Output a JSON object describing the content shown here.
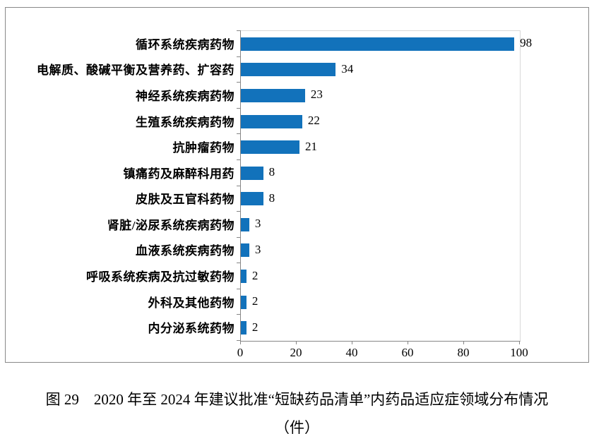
{
  "chart_data": {
    "type": "bar",
    "orientation": "horizontal",
    "categories": [
      "循环系统疾病药物",
      "电解质、酸碱平衡及营养药、扩容药",
      "神经系统疾病药物",
      "生殖系统疾病药物",
      "抗肿瘤药物",
      "镇痛药及麻醉科用药",
      "皮肤及五官科药物",
      "肾脏/泌尿系统疾病药物",
      "血液系统疾病药物",
      "呼吸系统疾病及抗过敏药物",
      "外科及其他药物",
      "内分泌系统药物"
    ],
    "values": [
      98,
      34,
      23,
      22,
      21,
      8,
      8,
      3,
      3,
      2,
      2,
      2
    ],
    "value_labels": [
      "98",
      "34",
      "23",
      "22",
      "21",
      "8",
      "8",
      "3",
      "3",
      "2",
      "2",
      "2"
    ],
    "xlim": [
      0,
      100
    ],
    "x_ticks": [
      "0",
      "20",
      "40",
      "60",
      "80",
      "100"
    ],
    "x_tick_values": [
      0,
      20,
      40,
      60,
      80,
      100
    ],
    "grid": false,
    "legend": "none",
    "bar_color": "#1272bb",
    "axis_color": "#868686",
    "plot_border_color": "#d9d9d9",
    "title": "",
    "xlabel": "",
    "ylabel": ""
  },
  "caption": {
    "line1": "图 29　2020 年至 2024 年建议批准“短缺药品清单”内药品适应症领域分布情况",
    "line2": "（件）"
  }
}
